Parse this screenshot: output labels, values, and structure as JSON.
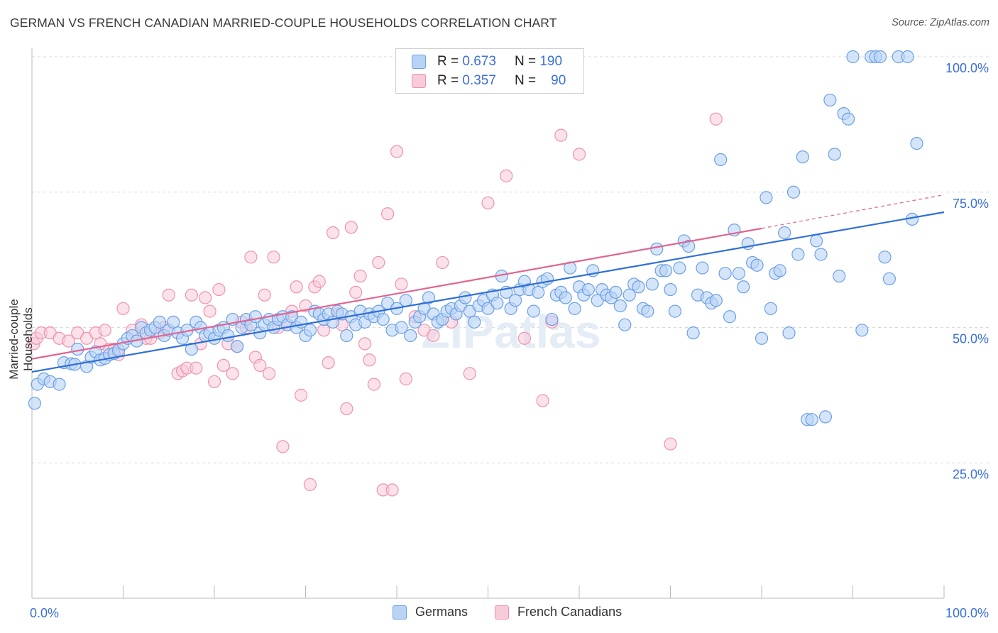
{
  "title": "GERMAN VS FRENCH CANADIAN MARRIED-COUPLE HOUSEHOLDS CORRELATION CHART",
  "source": "Source: ZipAtlas.com",
  "watermark": "ZIPatlas",
  "legend": {
    "rows": [
      {
        "r_label": "R =",
        "r_value": "0.673",
        "n_label": "N =",
        "n_value": "190",
        "color": "#7aaef0"
      },
      {
        "r_label": "R =",
        "r_value": "0.357",
        "n_label": "N =",
        "n_value": "90",
        "color": "#f4a6bd"
      }
    ]
  },
  "bottom_legend": [
    {
      "label": "Germans",
      "color": "#7aaef0"
    },
    {
      "label": "French Canadians",
      "color": "#f4a6bd"
    }
  ],
  "chart_data": {
    "type": "scatter",
    "title": "GERMAN VS FRENCH CANADIAN MARRIED-COUPLE HOUSEHOLDS CORRELATION CHART",
    "xlabel": "",
    "ylabel": "Married-couple Households",
    "xlim": [
      0,
      100
    ],
    "ylim": [
      0,
      102
    ],
    "x_tick_labels": [
      "0.0%",
      "100.0%"
    ],
    "y_ticks": [
      25,
      50,
      75,
      100
    ],
    "y_tick_labels": [
      "25.0%",
      "50.0%",
      "75.0%",
      "100.0%"
    ],
    "grid": "horizontal dashed",
    "legend_position": "top-center",
    "colors": {
      "germans_fill": "#b9d3f5",
      "germans_stroke": "#6c9fe6",
      "germans_line": "#2f6fd6",
      "french_fill": "#f8cbd8",
      "french_stroke": "#ee93ae",
      "french_line": "#e2648f"
    },
    "series": [
      {
        "name": "Germans",
        "trend": {
          "x": [
            0,
            100
          ],
          "y": [
            41.8,
            71.3
          ]
        },
        "points": [
          [
            0.3,
            36
          ],
          [
            0.6,
            39.5
          ],
          [
            1.3,
            40.5
          ],
          [
            2,
            40
          ],
          [
            3,
            39.5
          ],
          [
            3.5,
            43.5
          ],
          [
            4.3,
            43.3
          ],
          [
            5,
            46
          ],
          [
            4.7,
            43.2
          ],
          [
            6,
            42.8
          ],
          [
            6.5,
            44.5
          ],
          [
            7,
            45.5
          ],
          [
            7.5,
            44
          ],
          [
            8,
            44.3
          ],
          [
            8.5,
            45
          ],
          [
            9,
            45.2
          ],
          [
            9.5,
            45.8
          ],
          [
            10,
            47
          ],
          [
            10.5,
            48
          ],
          [
            11,
            48.5
          ],
          [
            11.5,
            47.5
          ],
          [
            12,
            50
          ],
          [
            12.5,
            49
          ],
          [
            13,
            49.5
          ],
          [
            13.5,
            50
          ],
          [
            14,
            51
          ],
          [
            14.5,
            48.5
          ],
          [
            15,
            49.5
          ],
          [
            15.5,
            51
          ],
          [
            16,
            49
          ],
          [
            16.5,
            48
          ],
          [
            17,
            49.5
          ],
          [
            17.5,
            46
          ],
          [
            18,
            51
          ],
          [
            18.5,
            50
          ],
          [
            19,
            48.5
          ],
          [
            19.5,
            49
          ],
          [
            20,
            48
          ],
          [
            20.5,
            49.5
          ],
          [
            21,
            50
          ],
          [
            21.5,
            48.5
          ],
          [
            22,
            51.5
          ],
          [
            22.5,
            46.5
          ],
          [
            23,
            50
          ],
          [
            23.5,
            51.5
          ],
          [
            24,
            50.5
          ],
          [
            24.5,
            52
          ],
          [
            25,
            49
          ],
          [
            25.5,
            50.5
          ],
          [
            26,
            51.5
          ],
          [
            26.5,
            50
          ],
          [
            27,
            51.5
          ],
          [
            27.5,
            52
          ],
          [
            28,
            50.5
          ],
          [
            28.5,
            52
          ],
          [
            29,
            50
          ],
          [
            29.5,
            51
          ],
          [
            30,
            48.5
          ],
          [
            30.5,
            49.5
          ],
          [
            31,
            53
          ],
          [
            31.5,
            52.5
          ],
          [
            32,
            51.5
          ],
          [
            32.5,
            52.5
          ],
          [
            33,
            51
          ],
          [
            33.5,
            53
          ],
          [
            34,
            52.5
          ],
          [
            34.5,
            48.5
          ],
          [
            35,
            52
          ],
          [
            35.5,
            50.5
          ],
          [
            36,
            53
          ],
          [
            36.5,
            51
          ],
          [
            37,
            52.5
          ],
          [
            37.5,
            52
          ],
          [
            38,
            53
          ],
          [
            38.5,
            51.5
          ],
          [
            39,
            54.5
          ],
          [
            39.5,
            49.5
          ],
          [
            40,
            53.5
          ],
          [
            40.5,
            50
          ],
          [
            41,
            55
          ],
          [
            41.5,
            48.5
          ],
          [
            42,
            51
          ],
          [
            42.5,
            52
          ],
          [
            43,
            53.5
          ],
          [
            43.5,
            55.5
          ],
          [
            44,
            52.5
          ],
          [
            44.5,
            51
          ],
          [
            45,
            51.5
          ],
          [
            45.5,
            53
          ],
          [
            46,
            53.5
          ],
          [
            46.5,
            52.5
          ],
          [
            47,
            54
          ],
          [
            47.5,
            55.5
          ],
          [
            48,
            53
          ],
          [
            48.5,
            51
          ],
          [
            49,
            54
          ],
          [
            49.5,
            55
          ],
          [
            50,
            53.5
          ],
          [
            50.5,
            56
          ],
          [
            51,
            54.5
          ],
          [
            51.5,
            59.5
          ],
          [
            52,
            56.5
          ],
          [
            52.5,
            53.5
          ],
          [
            53,
            55
          ],
          [
            53.5,
            57
          ],
          [
            54,
            58.5
          ],
          [
            54.5,
            57
          ],
          [
            55,
            53
          ],
          [
            55.5,
            56.5
          ],
          [
            56,
            58.5
          ],
          [
            56.5,
            59
          ],
          [
            57,
            51.5
          ],
          [
            57.5,
            56
          ],
          [
            58,
            56.5
          ],
          [
            58.5,
            55.5
          ],
          [
            59,
            61
          ],
          [
            59.5,
            53.5
          ],
          [
            60,
            57.5
          ],
          [
            60.5,
            56
          ],
          [
            61,
            57
          ],
          [
            61.5,
            60.5
          ],
          [
            62,
            55
          ],
          [
            62.5,
            57
          ],
          [
            63,
            56
          ],
          [
            63.5,
            55.5
          ],
          [
            64,
            56.5
          ],
          [
            64.5,
            54
          ],
          [
            65,
            50.5
          ],
          [
            65.5,
            56
          ],
          [
            66,
            58
          ],
          [
            66.5,
            57.5
          ],
          [
            67,
            53.5
          ],
          [
            67.5,
            53
          ],
          [
            68,
            58
          ],
          [
            68.5,
            64.5
          ],
          [
            69,
            60.5
          ],
          [
            69.5,
            60.5
          ],
          [
            70,
            57
          ],
          [
            70.5,
            53
          ],
          [
            71,
            61
          ],
          [
            71.5,
            66
          ],
          [
            72,
            65
          ],
          [
            72.5,
            49
          ],
          [
            73,
            56
          ],
          [
            73.5,
            61
          ],
          [
            74,
            55.5
          ],
          [
            74.5,
            54.5
          ],
          [
            75,
            55
          ],
          [
            75.5,
            81
          ],
          [
            76,
            60
          ],
          [
            76.5,
            52
          ],
          [
            77,
            68
          ],
          [
            77.5,
            60
          ],
          [
            78,
            57.5
          ],
          [
            78.5,
            65.5
          ],
          [
            79,
            62
          ],
          [
            79.5,
            61.5
          ],
          [
            80,
            48
          ],
          [
            80.5,
            74
          ],
          [
            81,
            53.5
          ],
          [
            81.5,
            60
          ],
          [
            82,
            60.5
          ],
          [
            82.5,
            67.5
          ],
          [
            83,
            49
          ],
          [
            83.5,
            75
          ],
          [
            84,
            63.5
          ],
          [
            84.5,
            81.5
          ],
          [
            85,
            33
          ],
          [
            85.5,
            33
          ],
          [
            86,
            66
          ],
          [
            86.5,
            63.5
          ],
          [
            87,
            33.5
          ],
          [
            87.5,
            92
          ],
          [
            88,
            82
          ],
          [
            88.5,
            59.5
          ],
          [
            89,
            89.5
          ],
          [
            89.5,
            88.5
          ],
          [
            90,
            100
          ],
          [
            91,
            49.5
          ],
          [
            92,
            100
          ],
          [
            92.5,
            100
          ],
          [
            93,
            100
          ],
          [
            93.5,
            63
          ],
          [
            94,
            59
          ],
          [
            95,
            100
          ],
          [
            96,
            100
          ],
          [
            97,
            84
          ],
          [
            96.5,
            70
          ]
        ]
      },
      {
        "name": "French Canadians",
        "trend": {
          "x": [
            0,
            80
          ],
          "y": [
            44.2,
            68.3
          ]
        },
        "trend_extension": {
          "x": [
            80,
            100
          ],
          "y": [
            68.3,
            74.5
          ]
        },
        "points": [
          [
            0.2,
            47
          ],
          [
            0.5,
            48
          ],
          [
            1,
            49
          ],
          [
            2,
            49
          ],
          [
            3,
            48
          ],
          [
            4,
            47.5
          ],
          [
            5,
            49
          ],
          [
            6,
            48
          ],
          [
            7,
            49
          ],
          [
            7.5,
            47
          ],
          [
            8,
            49.5
          ],
          [
            8.5,
            46
          ],
          [
            9,
            46
          ],
          [
            9.5,
            45
          ],
          [
            10,
            53.5
          ],
          [
            11,
            49.5
          ],
          [
            12,
            50.5
          ],
          [
            12.5,
            48
          ],
          [
            13,
            48
          ],
          [
            14,
            49
          ],
          [
            14.5,
            50
          ],
          [
            15,
            56
          ],
          [
            16,
            41.5
          ],
          [
            16.5,
            42
          ],
          [
            17,
            42.5
          ],
          [
            17.5,
            56
          ],
          [
            18,
            42.5
          ],
          [
            18.5,
            47
          ],
          [
            19,
            55.5
          ],
          [
            19.5,
            53
          ],
          [
            20,
            40
          ],
          [
            20.5,
            57
          ],
          [
            21,
            43
          ],
          [
            21.5,
            47
          ],
          [
            22,
            41.5
          ],
          [
            22.5,
            46.5
          ],
          [
            23,
            51
          ],
          [
            23.5,
            50
          ],
          [
            24,
            63
          ],
          [
            24.5,
            44.5
          ],
          [
            25,
            43
          ],
          [
            25.5,
            56
          ],
          [
            26,
            41.5
          ],
          [
            26.5,
            63
          ],
          [
            27,
            50
          ],
          [
            27.5,
            28
          ],
          [
            28,
            50.5
          ],
          [
            28.5,
            53
          ],
          [
            29,
            57.5
          ],
          [
            29.5,
            37.5
          ],
          [
            30,
            54
          ],
          [
            30.5,
            21
          ],
          [
            31,
            57.5
          ],
          [
            31.5,
            58.5
          ],
          [
            32,
            49.5
          ],
          [
            32.5,
            43.5
          ],
          [
            33,
            67.5
          ],
          [
            33.5,
            52.5
          ],
          [
            34,
            50.5
          ],
          [
            34.5,
            35
          ],
          [
            35,
            68.5
          ],
          [
            35.5,
            56.5
          ],
          [
            36,
            59.5
          ],
          [
            36.5,
            47
          ],
          [
            37,
            44
          ],
          [
            37.5,
            39.5
          ],
          [
            38,
            62
          ],
          [
            38.5,
            20
          ],
          [
            39,
            71
          ],
          [
            39.5,
            20
          ],
          [
            40,
            82.5
          ],
          [
            40.5,
            58
          ],
          [
            41,
            40.5
          ],
          [
            42,
            52
          ],
          [
            43,
            49.5
          ],
          [
            44,
            48.5
          ],
          [
            45,
            62
          ],
          [
            46,
            51
          ],
          [
            48,
            41.5
          ],
          [
            50,
            73
          ],
          [
            52,
            78
          ],
          [
            54,
            48
          ],
          [
            56,
            36.5
          ],
          [
            57,
            51
          ],
          [
            58,
            85.5
          ],
          [
            60,
            82
          ],
          [
            70,
            28.5
          ],
          [
            75,
            88.5
          ]
        ]
      }
    ]
  }
}
